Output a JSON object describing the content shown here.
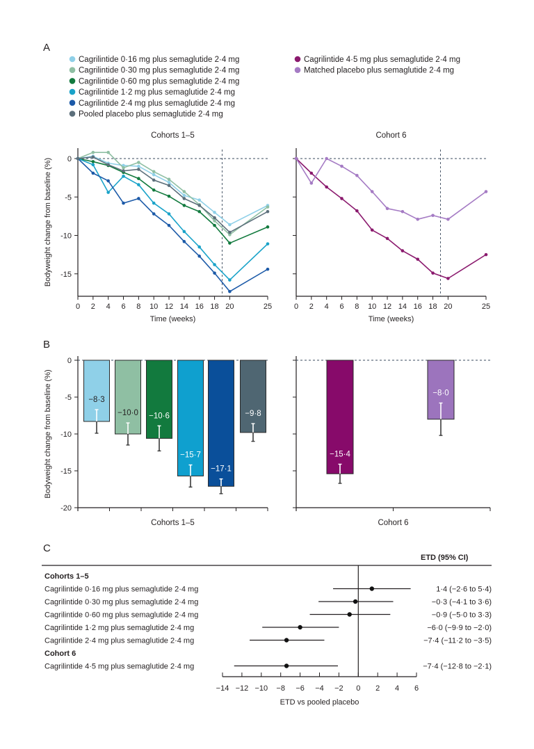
{
  "chart_data": [
    {
      "panel": "A",
      "type": "line",
      "title": "Cohorts 1–5",
      "xlabel": "Time (weeks)",
      "ylabel": "Bodyweight change from baseline (%)",
      "x": [
        0,
        2,
        4,
        6,
        8,
        10,
        12,
        14,
        16,
        18,
        20,
        25
      ],
      "xticks": [
        "0",
        "2",
        "4",
        "6",
        "8",
        "10",
        "12",
        "14",
        "16",
        "18",
        "20",
        "25"
      ],
      "yticks": [
        "0",
        "-5",
        "-10",
        "-15"
      ],
      "ylim": [
        -18,
        1.5
      ],
      "xlim": [
        0,
        25
      ],
      "reference_lines": {
        "horizontal_y": 0,
        "vertical_x": 19
      },
      "series": [
        {
          "name": "Cagrilintide 0·16 mg plus semaglutide 2·4 mg",
          "color": "#8fd0e8",
          "values": [
            0,
            0.3,
            -0.6,
            -0.9,
            -1.0,
            -2.1,
            -3.1,
            -4.8,
            -5.4,
            -7.0,
            -8.6,
            -6.1
          ]
        },
        {
          "name": "Cagrilintide 0·30 mg plus semaglutide 2·4 mg",
          "color": "#8fbfa3",
          "values": [
            0,
            0.8,
            0.8,
            -1.2,
            -0.5,
            -1.7,
            -2.7,
            -4.3,
            -6.0,
            -8.1,
            -9.9,
            -6.3
          ]
        },
        {
          "name": "Cagrilintide 0·60 mg plus semaglutide 2·4 mg",
          "color": "#127a3e",
          "values": [
            0,
            -0.4,
            -0.9,
            -1.8,
            -2.6,
            -4.1,
            -4.9,
            -6.1,
            -6.9,
            -8.7,
            -11.0,
            -8.9
          ]
        },
        {
          "name": "Cagrilintide 1·2 mg plus semaglutide 2·4 mg",
          "color": "#1aa3c9",
          "values": [
            0,
            -0.8,
            -4.4,
            -2.3,
            -3.4,
            -5.8,
            -7.2,
            -9.5,
            -11.5,
            -13.8,
            -15.8,
            -11.1
          ]
        },
        {
          "name": "Cagrilintide 2·4 mg plus semaglutide 2·4 mg",
          "color": "#1c5aa8",
          "values": [
            0,
            -1.9,
            -2.9,
            -5.8,
            -5.2,
            -7.2,
            -8.7,
            -10.8,
            -12.7,
            -14.9,
            -17.3,
            -14.4
          ]
        },
        {
          "name": "Pooled placebo plus semaglutide 2·4 mg",
          "color": "#5c6f7b",
          "values": [
            0,
            0.2,
            -0.8,
            -1.6,
            -1.4,
            -2.8,
            -3.5,
            -5.2,
            -6.1,
            -7.7,
            -9.6,
            -6.9
          ]
        }
      ]
    },
    {
      "panel": "A",
      "type": "line",
      "title": "Cohort 6",
      "xlabel": "Time (weeks)",
      "ylabel": "",
      "x": [
        0,
        2,
        4,
        6,
        8,
        10,
        12,
        14,
        16,
        18,
        20,
        25
      ],
      "xticks": [
        "0",
        "2",
        "4",
        "6",
        "8",
        "10",
        "12",
        "14",
        "16",
        "18",
        "20",
        "25"
      ],
      "ylim": [
        -18,
        1.5
      ],
      "xlim": [
        0,
        25
      ],
      "reference_lines": {
        "horizontal_y": 0,
        "vertical_x": 19
      },
      "series": [
        {
          "name": "Cagrilintide 4·5 mg plus semaglutide 2·4 mg",
          "color": "#8b1a6e",
          "values": [
            0,
            -1.9,
            -3.7,
            -5.2,
            -6.8,
            -9.3,
            -10.4,
            -12.0,
            -13.1,
            -14.9,
            -15.6,
            -12.5
          ]
        },
        {
          "name": "Matched placebo plus semaglutide 2·4 mg",
          "color": "#a57bc4",
          "values": [
            0,
            -3.2,
            0.0,
            -1.0,
            -2.2,
            -4.3,
            -6.5,
            -6.9,
            -7.9,
            -7.4,
            -7.9,
            -4.3
          ]
        }
      ]
    },
    {
      "panel": "B",
      "type": "bar",
      "title": "Cohorts 1–5",
      "ylabel": "Bodyweight change from baseline (%)",
      "ylim": [
        -20,
        0
      ],
      "yticks": [
        "0",
        "-5",
        "-10",
        "-15",
        "-20"
      ],
      "categories": [
        "Cagrilintide 0·16 mg plus semaglutide 2·4 mg",
        "Cagrilintide 0·30 mg plus semaglutide 2·4 mg",
        "Cagrilintide 0·60 mg plus semaglutide 2·4 mg",
        "Cagrilintide 1·2 mg plus semaglutide 2·4 mg",
        "Cagrilintide 2·4 mg plus semaglutide 2·4 mg",
        "Pooled placebo plus semaglutide 2·4 mg"
      ],
      "values": [
        -8.3,
        -10.0,
        -10.6,
        -15.7,
        -17.1,
        -9.8
      ],
      "labels": [
        "−8·3",
        "−10·0",
        "−10·6",
        "−15·7",
        "−17·1",
        "−9·8"
      ],
      "error": [
        1.6,
        1.5,
        1.7,
        1.5,
        1.0,
        1.2
      ],
      "colors": [
        "#8fd0e8",
        "#8fbfa3",
        "#127a3e",
        "#0fa0cf",
        "#0a4f9a",
        "#4f6672"
      ],
      "label_colors": [
        "#231f20",
        "#231f20",
        "#ffffff",
        "#ffffff",
        "#ffffff",
        "#ffffff"
      ]
    },
    {
      "panel": "B",
      "type": "bar",
      "title": "Cohort 6",
      "ylim": [
        -20,
        0
      ],
      "categories": [
        "Cagrilintide 4·5 mg plus semaglutide 2·4 mg",
        "Matched placebo plus semaglutide 2·4 mg"
      ],
      "values": [
        -15.4,
        -8.0
      ],
      "labels": [
        "−15·4",
        "−8·0"
      ],
      "error": [
        1.3,
        2.2
      ],
      "colors": [
        "#870a6a",
        "#9c74bd"
      ],
      "label_colors": [
        "#ffffff",
        "#ffffff"
      ]
    },
    {
      "panel": "C",
      "type": "scatter",
      "subtype": "forest",
      "header": "ETD (95% CI)",
      "xlabel": "ETD vs pooled placebo",
      "xlim": [
        -14,
        6
      ],
      "xticks": [
        "−14",
        "−12",
        "−10",
        "−8",
        "−6",
        "−4",
        "−2",
        "0",
        "2",
        "4",
        "6"
      ],
      "groups": [
        {
          "label": "Cohorts 1–5",
          "rows": [
            {
              "label": "Cagrilintide 0·16 mg plus semaglutide 2·4 mg",
              "etd": 1.4,
              "lo": -2.6,
              "hi": 5.4,
              "text": "1·4 (−2·6 to 5·4)"
            },
            {
              "label": "Cagrilintide 0·30 mg plus semaglutide 2·4 mg",
              "etd": -0.3,
              "lo": -4.1,
              "hi": 3.6,
              "text": "−0·3 (−4·1 to 3·6)"
            },
            {
              "label": "Cagrilintide 0·60 mg plus semaglutide 2·4 mg",
              "etd": -0.9,
              "lo": -5.0,
              "hi": 3.3,
              "text": "−0·9 (−5·0 to 3·3)"
            },
            {
              "label": "Cagrilintide 1·2 mg plus semaglutide 2·4 mg",
              "etd": -6.0,
              "lo": -9.9,
              "hi": -2.0,
              "text": "−6·0 (−9·9 to −2·0)"
            },
            {
              "label": "Cagrilintide 2·4 mg plus semaglutide 2·4 mg",
              "etd": -7.4,
              "lo": -11.2,
              "hi": -3.5,
              "text": "−7·4 (−11·2 to −3·5)"
            }
          ]
        },
        {
          "label": "Cohort 6",
          "rows": [
            {
              "label": "Cagrilintide 4·5 mg plus semaglutide 2·4 mg",
              "etd": -7.4,
              "lo": -12.8,
              "hi": -2.1,
              "text": "−7·4 (−12·8 to −2·1)"
            }
          ]
        }
      ]
    }
  ],
  "panels": {
    "a": "A",
    "b": "B",
    "c": "C"
  },
  "legend": {
    "col1": [
      {
        "label": "Cagrilintide 0·16 mg plus semaglutide 2·4 mg",
        "color": "#8fd0e8"
      },
      {
        "label": "Cagrilintide 0·30 mg plus semaglutide 2·4 mg",
        "color": "#8fbfa3"
      },
      {
        "label": "Cagrilintide 0·60 mg plus semaglutide 2·4 mg",
        "color": "#127a3e"
      },
      {
        "label": "Cagrilintide 1·2 mg plus semaglutide 2·4 mg",
        "color": "#1aa3c9"
      },
      {
        "label": "Cagrilintide 2·4 mg plus semaglutide 2·4 mg",
        "color": "#1c5aa8"
      },
      {
        "label": "Pooled placebo plus semaglutide 2·4 mg",
        "color": "#5c6f7b"
      }
    ],
    "col2": [
      {
        "label": "Cagrilintide 4·5 mg plus semaglutide 2·4 mg",
        "color": "#8b1a6e"
      },
      {
        "label": "Matched placebo plus semaglutide 2·4 mg",
        "color": "#a57bc4"
      }
    ]
  }
}
